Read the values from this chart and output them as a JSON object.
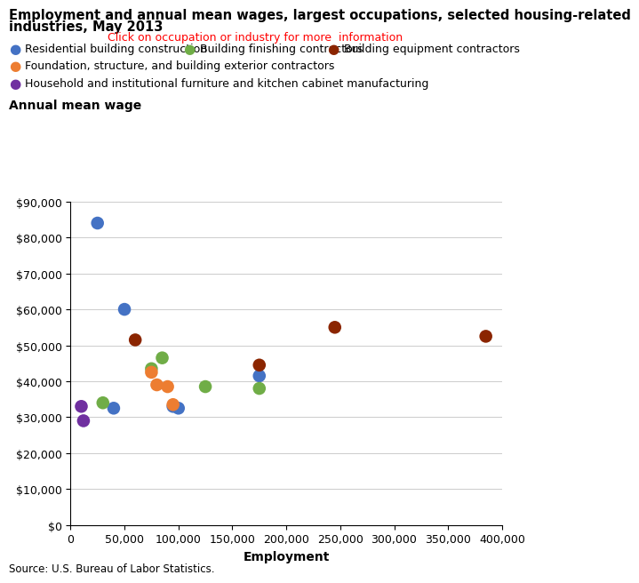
{
  "title_line1": "Employment and annual mean wages, largest occupations, selected housing-related",
  "title_line2": "industries, May 2013",
  "subtitle": "Click on occupation or industry for more  information",
  "subtitle_color": "#FF0000",
  "xlabel": "Employment",
  "ylabel": "Annual mean wage",
  "source": "Source: U.S. Bureau of Labor Statistics.",
  "xlim": [
    0,
    400000
  ],
  "ylim": [
    0,
    90000
  ],
  "xticks": [
    0,
    50000,
    100000,
    150000,
    200000,
    250000,
    300000,
    350000,
    400000
  ],
  "yticks": [
    0,
    10000,
    20000,
    30000,
    40000,
    50000,
    60000,
    70000,
    80000,
    90000
  ],
  "series": [
    {
      "label": "Residential building construction",
      "color": "#4472C4",
      "points": [
        [
          25000,
          84000
        ],
        [
          50000,
          60000
        ],
        [
          95000,
          33000
        ],
        [
          100000,
          32500
        ],
        [
          175000,
          41500
        ],
        [
          40000,
          32500
        ]
      ]
    },
    {
      "label": "Building finishing contractors",
      "color": "#70AD47",
      "points": [
        [
          30000,
          34000
        ],
        [
          75000,
          43500
        ],
        [
          85000,
          46500
        ],
        [
          125000,
          38500
        ],
        [
          175000,
          38000
        ]
      ]
    },
    {
      "label": "Building equipment contractors",
      "color": "#8B2500",
      "points": [
        [
          60000,
          51500
        ],
        [
          245000,
          55000
        ],
        [
          385000,
          52500
        ],
        [
          175000,
          44500
        ]
      ]
    },
    {
      "label": "Foundation, structure, and building exterior contractors",
      "color": "#ED7D31",
      "points": [
        [
          75000,
          42500
        ],
        [
          80000,
          39000
        ],
        [
          90000,
          38500
        ],
        [
          95000,
          33500
        ]
      ]
    },
    {
      "label": "Household and institutional furniture and kitchen cabinet manufacturing",
      "color": "#7030A0",
      "points": [
        [
          10000,
          33000
        ],
        [
          12000,
          29000
        ]
      ]
    }
  ],
  "marker_size": 110,
  "title_fontsize": 10.5,
  "axis_label_fontsize": 10,
  "legend_fontsize": 9,
  "tick_fontsize": 9,
  "legend_row1": [
    0,
    1,
    2
  ],
  "legend_row2": [
    3
  ],
  "legend_row3": [
    4
  ]
}
